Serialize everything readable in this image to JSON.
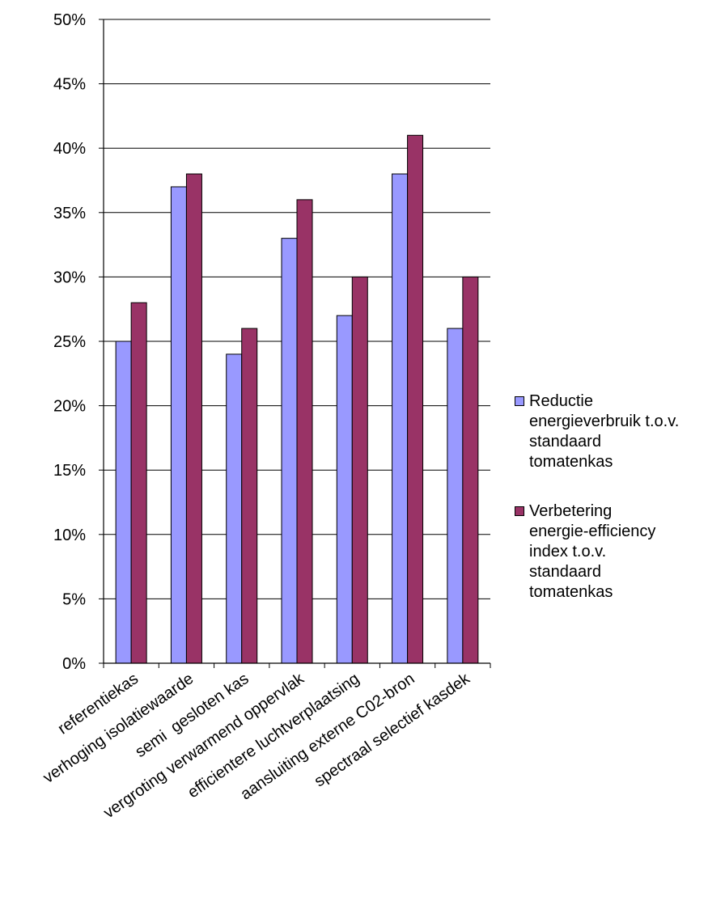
{
  "chart_data": {
    "type": "bar",
    "title": "",
    "xlabel": "",
    "ylabel": "",
    "categories": [
      "referentiekas",
      "verhoging isolatiewaarde",
      "semi  gesloten kas",
      "vergroting verwarmend oppervlak",
      "efficientere luchtverplaatsing",
      "aansluiting externe C02-bron",
      "spectraal selectief kasdek"
    ],
    "series": [
      {
        "name": "Reductie\nenergieverbruik t.o.v.\nstandaard\ntomatenkas",
        "color": "#9999ff",
        "values": [
          25,
          37,
          24,
          33,
          27,
          38,
          26
        ]
      },
      {
        "name": "Verbetering\nenergie-efficiency\nindex t.o.v.\nstandaard\ntomatenkas",
        "color": "#993366",
        "values": [
          28,
          38,
          26,
          36,
          30,
          41,
          30
        ]
      }
    ],
    "ylim": [
      0,
      50
    ],
    "yticks": [
      "0%",
      "5%",
      "10%",
      "15%",
      "20%",
      "25%",
      "30%",
      "35%",
      "40%",
      "45%",
      "50%"
    ],
    "grid": true,
    "legend_position": "right"
  }
}
